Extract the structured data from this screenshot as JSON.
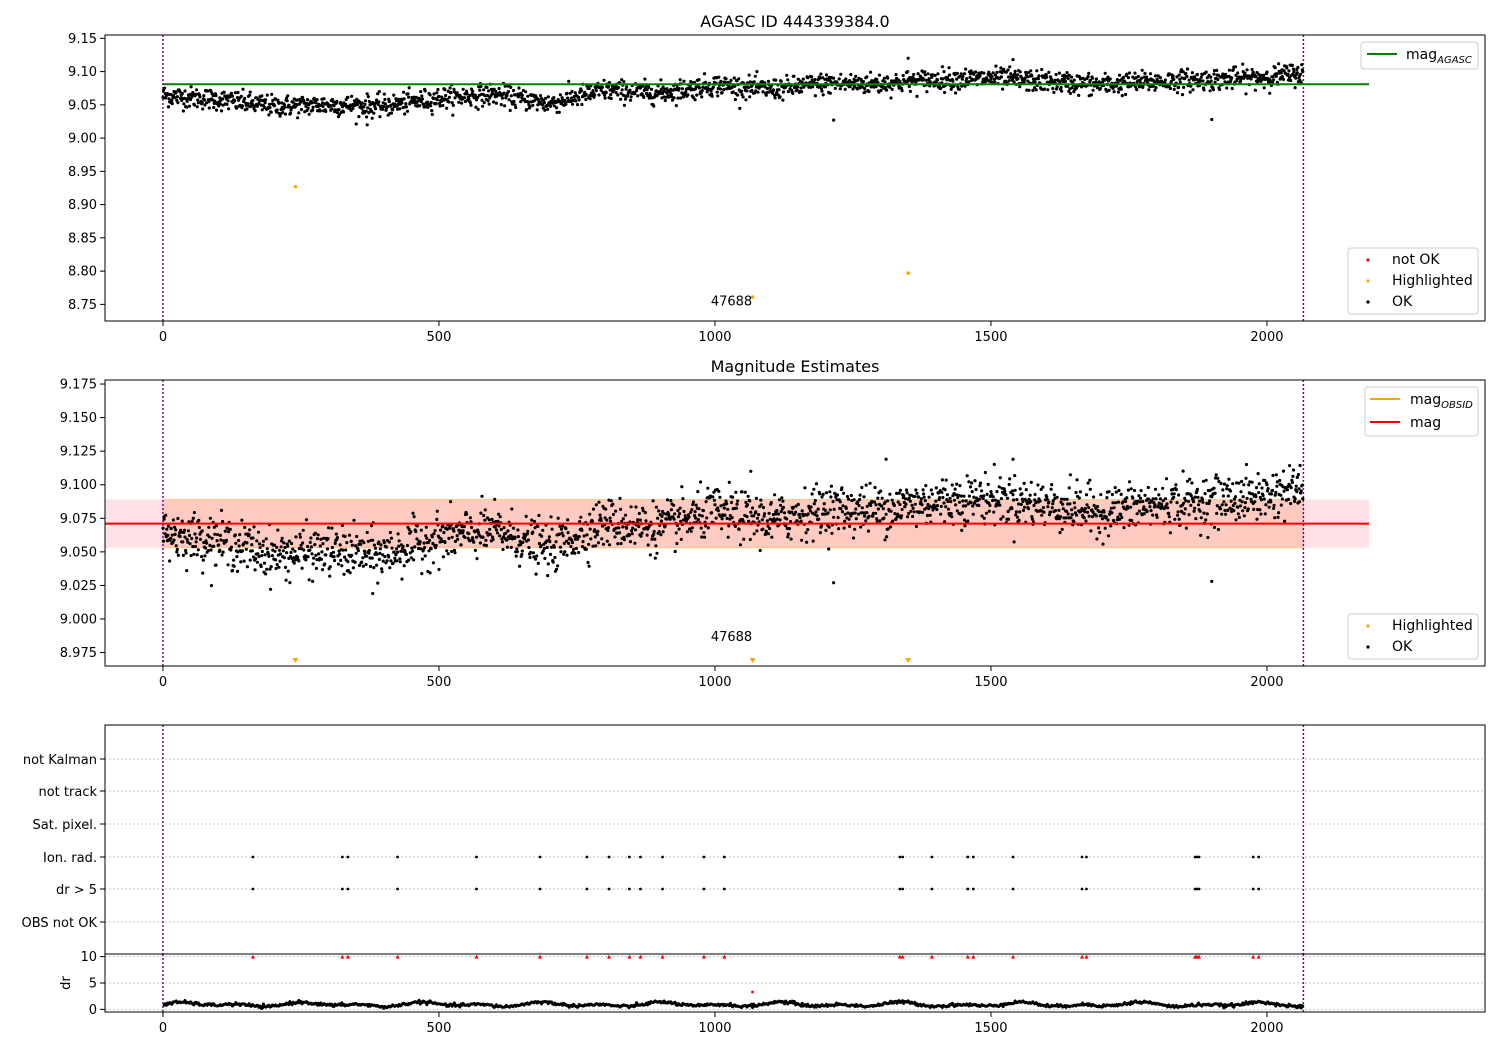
{
  "figure": {
    "background": "#ffffff",
    "obs_start": 0,
    "obs_end": 2066,
    "obs_line_color": "#800080"
  },
  "colors": {
    "ok": "#000000",
    "not_ok": "#ff0000",
    "highlighted": "#ffa500",
    "mag_agasc": "#008000",
    "mag_obsid": "#ffa500",
    "mag": "#ff0000",
    "band_fill": "#ffb6c1",
    "band_fill_obsid": "#ffa07a"
  },
  "chart_data": [
    {
      "type": "scatter",
      "title": "AGASC ID 444339384.0",
      "xlim": [
        -105,
        2395
      ],
      "ylim": [
        8.725,
        9.155
      ],
      "xticks": [
        0,
        500,
        1000,
        1500,
        2000
      ],
      "yticks": [
        8.75,
        8.8,
        8.85,
        8.9,
        8.95,
        9.0,
        9.05,
        9.1,
        9.15
      ],
      "ytick_labels": [
        "8.75",
        "8.80",
        "8.85",
        "8.90",
        "8.95",
        "9.00",
        "9.05",
        "9.10",
        "9.15"
      ],
      "mag_agasc": 9.081,
      "trend": [
        {
          "x": 0,
          "y": 9.064
        },
        {
          "x": 100,
          "y": 9.058
        },
        {
          "x": 200,
          "y": 9.048
        },
        {
          "x": 300,
          "y": 9.05
        },
        {
          "x": 400,
          "y": 9.048
        },
        {
          "x": 500,
          "y": 9.06
        },
        {
          "x": 600,
          "y": 9.066
        },
        {
          "x": 700,
          "y": 9.052
        },
        {
          "x": 800,
          "y": 9.072
        },
        {
          "x": 900,
          "y": 9.068
        },
        {
          "x": 1000,
          "y": 9.08
        },
        {
          "x": 1100,
          "y": 9.073
        },
        {
          "x": 1200,
          "y": 9.082
        },
        {
          "x": 1300,
          "y": 9.082
        },
        {
          "x": 1400,
          "y": 9.088
        },
        {
          "x": 1500,
          "y": 9.09
        },
        {
          "x": 1600,
          "y": 9.085
        },
        {
          "x": 1700,
          "y": 9.08
        },
        {
          "x": 1800,
          "y": 9.085
        },
        {
          "x": 1900,
          "y": 9.088
        },
        {
          "x": 2000,
          "y": 9.092
        },
        {
          "x": 2066,
          "y": 9.098
        }
      ],
      "noise": 0.008,
      "outliers": [
        {
          "x": 370,
          "y": 9.02
        },
        {
          "x": 1215,
          "y": 9.027
        },
        {
          "x": 1900,
          "y": 9.028
        },
        {
          "x": 1540,
          "y": 9.118
        },
        {
          "x": 1350,
          "y": 9.12
        }
      ],
      "highlighted": [
        {
          "x": 240,
          "y": 8.927
        },
        {
          "x": 1068,
          "y": 8.761
        },
        {
          "x": 1350,
          "y": 8.797
        }
      ],
      "obsid_label": {
        "x": 1030,
        "y": 8.745,
        "text": "47688"
      },
      "legend_line": {
        "label": "mag",
        "sub": "AGASC"
      },
      "legend_points": [
        "not OK",
        "Highlighted",
        "OK"
      ]
    },
    {
      "type": "scatter",
      "title": "Magnitude Estimates",
      "xlim": [
        -105,
        2395
      ],
      "ylim": [
        8.965,
        9.178
      ],
      "xticks": [
        0,
        500,
        1000,
        1500,
        2000
      ],
      "yticks": [
        8.975,
        9.0,
        9.025,
        9.05,
        9.075,
        9.1,
        9.125,
        9.15,
        9.175
      ],
      "ytick_labels": [
        "8.975",
        "9.000",
        "9.025",
        "9.050",
        "9.075",
        "9.100",
        "9.125",
        "9.150",
        "9.175"
      ],
      "mag": 9.071,
      "mag_band": [
        9.053,
        9.089
      ],
      "trend": [
        {
          "x": 0,
          "y": 9.064
        },
        {
          "x": 100,
          "y": 9.058
        },
        {
          "x": 200,
          "y": 9.048
        },
        {
          "x": 300,
          "y": 9.05
        },
        {
          "x": 400,
          "y": 9.048
        },
        {
          "x": 500,
          "y": 9.06
        },
        {
          "x": 600,
          "y": 9.066
        },
        {
          "x": 700,
          "y": 9.052
        },
        {
          "x": 800,
          "y": 9.072
        },
        {
          "x": 900,
          "y": 9.068
        },
        {
          "x": 1000,
          "y": 9.08
        },
        {
          "x": 1100,
          "y": 9.073
        },
        {
          "x": 1200,
          "y": 9.082
        },
        {
          "x": 1300,
          "y": 9.082
        },
        {
          "x": 1400,
          "y": 9.088
        },
        {
          "x": 1500,
          "y": 9.09
        },
        {
          "x": 1600,
          "y": 9.085
        },
        {
          "x": 1700,
          "y": 9.08
        },
        {
          "x": 1800,
          "y": 9.085
        },
        {
          "x": 1900,
          "y": 9.088
        },
        {
          "x": 2000,
          "y": 9.092
        },
        {
          "x": 2066,
          "y": 9.098
        }
      ],
      "noise": 0.009,
      "outliers": [
        {
          "x": 380,
          "y": 9.019
        },
        {
          "x": 1215,
          "y": 9.027
        },
        {
          "x": 1900,
          "y": 9.028
        },
        {
          "x": 1540,
          "y": 9.119
        },
        {
          "x": 1310,
          "y": 9.119
        },
        {
          "x": 1065,
          "y": 9.11
        }
      ],
      "highlighted_offscale": [
        {
          "x": 240,
          "y": 8.968
        },
        {
          "x": 1068,
          "y": 8.968
        },
        {
          "x": 1350,
          "y": 8.968
        }
      ],
      "obsid_label": {
        "x": 1030,
        "y": 8.985,
        "text": "47688"
      },
      "legend_lines": [
        {
          "label": "mag",
          "sub": "OBSID"
        },
        {
          "label": "mag",
          "sub": ""
        }
      ],
      "legend_points": [
        "Highlighted",
        "OK"
      ]
    },
    {
      "type": "scatter",
      "title": "",
      "xlim": [
        -105,
        2395
      ],
      "flag_labels": [
        "not Kalman",
        "not track",
        "Sat. pixel.",
        "Ion. rad.",
        "dr > 5",
        "OBS not OK"
      ],
      "flag_events": [
        163,
        325,
        335,
        425,
        568,
        683,
        768,
        808,
        845,
        865,
        905,
        980,
        1017,
        1335,
        1340,
        1393,
        1458,
        1468,
        1540,
        1665,
        1673,
        1870,
        1873,
        1877,
        1975,
        1985
      ],
      "flag_rows_with_events": [
        "Ion. rad.",
        "dr > 5"
      ]
    },
    {
      "type": "scatter",
      "title": "",
      "ylabel": "dr",
      "xlim": [
        -105,
        2395
      ],
      "ylim": [
        -0.5,
        10.5
      ],
      "xticks": [
        0,
        500,
        1000,
        1500,
        2000
      ],
      "yticks": [
        0,
        5,
        10
      ],
      "ytick_labels": [
        "0",
        "5",
        "10"
      ],
      "dr_baseline": 0.9,
      "dr_amplitude": 0.5,
      "clipped_value": 10,
      "dr_outlier": {
        "x": 1068,
        "y": 3.3
      },
      "flag_events": [
        163,
        325,
        335,
        425,
        568,
        683,
        768,
        808,
        845,
        865,
        905,
        980,
        1017,
        1335,
        1340,
        1393,
        1458,
        1468,
        1540,
        1665,
        1673,
        1870,
        1873,
        1877,
        1975,
        1985
      ]
    }
  ]
}
